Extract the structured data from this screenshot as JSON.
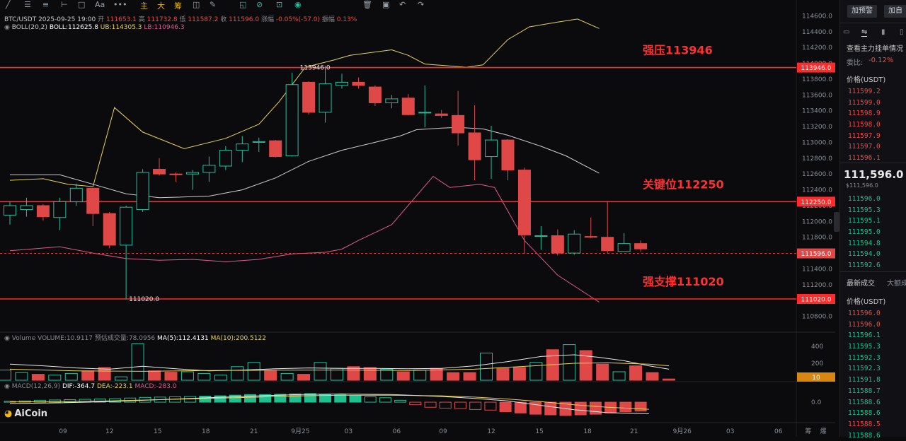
{
  "toolbar": {
    "icons": [
      "trend-line",
      "horizontal-lines",
      "parallel-lines",
      "ray",
      "rectangle",
      "text",
      "dots",
      "zhu",
      "da",
      "chou",
      "indicator",
      "pen",
      "ruler",
      "magnet",
      "lock",
      "eye",
      "trash",
      "undo",
      "redo"
    ],
    "labels": {
      "zhu": "主",
      "da": "大",
      "chou": "筹",
      "text": "Aa"
    }
  },
  "header": {
    "symbol": "BTC/USDT",
    "time": "2025-09-25 19:00",
    "open_label": "开",
    "open": "111653.1",
    "high_label": "高",
    "high": "111732.8",
    "low_label": "低",
    "low": "111587.2",
    "close_label": "收",
    "close": "111596.0",
    "change_label": "涨幅",
    "change": "-0.05%(-57.0)",
    "amp_label": "振幅",
    "amp": "0.13%"
  },
  "boll": {
    "name": "BOLL(20,2)",
    "mid": "BOLL:112625.8",
    "ub": "UB:114305.3",
    "lb": "LB:110946.3"
  },
  "volume_info": {
    "name": "Volume",
    "volume": "VOLUME:10.9117",
    "est": "预估成交量:78.0956",
    "ma5": "MA(5):112.4131",
    "ma10": "MA(10):200.5122"
  },
  "macd_info": {
    "name": "MACD(12,26,9)",
    "dif": "DIF:-364.7",
    "dea": "DEA:-223.1",
    "macd": "MACD:-283.0"
  },
  "logo": "AiCoin",
  "colors": {
    "up": "#23c0a0",
    "down": "#e04848",
    "line": "#ff2a2a",
    "boll_up": "#e8d35a",
    "boll_mid": "#cfcfcf",
    "boll_low": "#e05a8c"
  },
  "chart_data": {
    "type": "candlestick",
    "ylim": [
      110600,
      114800
    ],
    "price_ticks": [
      "114600.0",
      "114400.0",
      "114200.0",
      "114000.0",
      "113800.0",
      "113600.0",
      "113400.0",
      "113200.0",
      "113000.0",
      "112800.0",
      "112600.0",
      "112400.0",
      "112200.0",
      "112000.0",
      "111800.0",
      "111600.0",
      "111400.0",
      "111200.0",
      "111000.0",
      "110800.0"
    ],
    "price_tick_values": [
      114600,
      114400,
      114200,
      114000,
      113800,
      113600,
      113400,
      113200,
      113000,
      112800,
      112600,
      112400,
      112200,
      112000,
      111800,
      111600,
      111400,
      111200,
      111000,
      110800
    ],
    "x_ticks": [
      {
        "label": "09",
        "i": 3.2
      },
      {
        "label": "12",
        "i": 6
      },
      {
        "label": "15",
        "i": 8.9
      },
      {
        "label": "18",
        "i": 11.8
      },
      {
        "label": "21",
        "i": 14.7
      },
      {
        "label": "9月25",
        "i": 17.5
      },
      {
        "label": "03",
        "i": 20.4
      },
      {
        "label": "06",
        "i": 23.3
      },
      {
        "label": "09",
        "i": 26.1
      },
      {
        "label": "12",
        "i": 29
      },
      {
        "label": "15",
        "i": 31.9
      },
      {
        "label": "18",
        "i": 34.8
      },
      {
        "label": "21",
        "i": 37.6
      },
      {
        "label": "9月26",
        "i": 40.5
      },
      {
        "label": "03",
        "i": 43.4
      },
      {
        "label": "06",
        "i": 46.3
      },
      {
        "label": "筹",
        "i": 48.1
      },
      {
        "label": "爆",
        "i": 49
      }
    ],
    "candles": [
      [
        112080,
        112250,
        111960,
        112200
      ],
      [
        112150,
        112300,
        112060,
        112200
      ],
      [
        112200,
        112220,
        112010,
        112060
      ],
      [
        112050,
        112300,
        111890,
        112250
      ],
      [
        112250,
        112480,
        112200,
        112420
      ],
      [
        112420,
        112420,
        111940,
        112100
      ],
      [
        112100,
        112120,
        111660,
        111700
      ],
      [
        111700,
        112200,
        111020,
        112180
      ],
      [
        112150,
        112660,
        112120,
        112620
      ],
      [
        112660,
        112800,
        112580,
        112600
      ],
      [
        112600,
        112620,
        112500,
        112590
      ],
      [
        112600,
        112650,
        112400,
        112620
      ],
      [
        112620,
        112820,
        112500,
        112710
      ],
      [
        112700,
        112950,
        112650,
        112900
      ],
      [
        112900,
        113080,
        112750,
        112980
      ],
      [
        113000,
        113060,
        112880,
        113010
      ],
      [
        113020,
        113030,
        112810,
        112820
      ],
      [
        112830,
        113880,
        112820,
        113730
      ],
      [
        113760,
        113770,
        113350,
        113380
      ],
      [
        113380,
        113970,
        113250,
        113740
      ],
      [
        113720,
        113870,
        113680,
        113760
      ],
      [
        113760,
        113820,
        113680,
        113720
      ],
      [
        113700,
        113720,
        113460,
        113500
      ],
      [
        113500,
        113600,
        113430,
        113550
      ],
      [
        113560,
        113610,
        113340,
        113350
      ],
      [
        113380,
        113720,
        113190,
        113380
      ],
      [
        113360,
        113410,
        113310,
        113340
      ],
      [
        113340,
        113650,
        112960,
        113120
      ],
      [
        113120,
        113470,
        112520,
        112780
      ],
      [
        112820,
        113210,
        112540,
        113030
      ],
      [
        113030,
        113040,
        112520,
        112650
      ],
      [
        112650,
        112680,
        111590,
        111830
      ],
      [
        111820,
        111940,
        111640,
        111820
      ],
      [
        111820,
        111900,
        111570,
        111600
      ],
      [
        111600,
        111890,
        111580,
        111840
      ],
      [
        111810,
        112050,
        111790,
        111800
      ],
      [
        111800,
        112250,
        111600,
        111630
      ],
      [
        111620,
        111850,
        111620,
        111720
      ],
      [
        111720,
        111760,
        111620,
        111653
      ]
    ],
    "boll_upper": [
      [
        0,
        112520
      ],
      [
        2,
        112540
      ],
      [
        3.5,
        112470
      ],
      [
        5,
        112440
      ],
      [
        6.3,
        113440
      ],
      [
        8,
        113130
      ],
      [
        10.5,
        112920
      ],
      [
        13,
        113050
      ],
      [
        15,
        113230
      ],
      [
        16.2,
        113510
      ],
      [
        17.8,
        113950
      ],
      [
        19.5,
        114040
      ],
      [
        20.5,
        114100
      ],
      [
        23,
        114170
      ],
      [
        24,
        114100
      ],
      [
        25,
        113990
      ],
      [
        27.5,
        113950
      ],
      [
        28.5,
        113980
      ],
      [
        30,
        114300
      ],
      [
        31.3,
        114460
      ],
      [
        33,
        114520
      ],
      [
        34.2,
        114560
      ],
      [
        35.5,
        114440
      ]
    ],
    "boll_mid": [
      [
        0,
        112590
      ],
      [
        3,
        112590
      ],
      [
        5,
        112470
      ],
      [
        7,
        112350
      ],
      [
        9,
        112300
      ],
      [
        12,
        112320
      ],
      [
        14,
        112400
      ],
      [
        16,
        112550
      ],
      [
        18,
        112760
      ],
      [
        20,
        112900
      ],
      [
        22,
        113000
      ],
      [
        23.5,
        113080
      ],
      [
        24.5,
        113160
      ],
      [
        26,
        113180
      ],
      [
        27,
        113190
      ],
      [
        28.5,
        113170
      ],
      [
        30,
        113090
      ],
      [
        32,
        112950
      ],
      [
        33.5,
        112830
      ],
      [
        35.5,
        112610
      ]
    ],
    "boll_lower": [
      [
        0,
        111630
      ],
      [
        3,
        111680
      ],
      [
        5,
        111600
      ],
      [
        7,
        111530
      ],
      [
        9,
        111510
      ],
      [
        11,
        111520
      ],
      [
        13,
        111490
      ],
      [
        15,
        111520
      ],
      [
        17,
        111590
      ],
      [
        19,
        111610
      ],
      [
        20,
        111650
      ],
      [
        21,
        111760
      ],
      [
        23,
        111960
      ],
      [
        25.5,
        112570
      ],
      [
        26.5,
        112430
      ],
      [
        28.3,
        112470
      ],
      [
        29.2,
        112430
      ],
      [
        31,
        111760
      ],
      [
        33,
        111320
      ],
      [
        35.5,
        110980
      ]
    ],
    "h_lines": [
      {
        "value": 113946,
        "label": "113946.0",
        "annotation": "强压113946"
      },
      {
        "value": 112250,
        "label": "112250.0",
        "annotation": "关键位112250"
      },
      {
        "value": 111020,
        "label": "111020.0",
        "annotation": "强支撑111020"
      }
    ],
    "current_price": {
      "value": 111596,
      "label": "111596.0"
    },
    "markers": [
      {
        "i": 17.3,
        "value": 113946,
        "label": "113946.0"
      },
      {
        "i": 7,
        "value": 111020,
        "label": "111020.0"
      }
    ],
    "volume": {
      "ylim": [
        0,
        450
      ],
      "ticks": [
        "400",
        "200"
      ],
      "tick_values": [
        400,
        200
      ],
      "current_tag": "10",
      "bars": [
        120,
        90,
        70,
        60,
        80,
        110,
        150,
        40,
        430,
        110,
        95,
        100,
        80,
        60,
        160,
        210,
        110,
        80,
        70,
        210,
        140,
        160,
        150,
        130,
        100,
        120,
        140,
        90,
        90,
        320,
        140,
        150,
        210,
        360,
        420,
        350,
        190,
        100,
        170,
        90,
        15
      ],
      "ma5": [
        [
          0,
          190
        ],
        [
          2,
          170
        ],
        [
          4,
          145
        ],
        [
          6,
          130
        ],
        [
          8,
          165
        ],
        [
          10,
          135
        ],
        [
          12,
          110
        ],
        [
          14,
          120
        ],
        [
          16,
          135
        ],
        [
          18,
          145
        ],
        [
          20,
          140
        ],
        [
          22,
          140
        ],
        [
          24,
          135
        ],
        [
          26,
          140
        ],
        [
          28,
          170
        ],
        [
          30,
          220
        ],
        [
          32,
          280
        ],
        [
          34,
          300
        ],
        [
          35.5,
          270
        ],
        [
          37,
          230
        ],
        [
          38.5,
          170
        ],
        [
          39.7,
          130
        ]
      ],
      "ma10": [
        [
          0,
          130
        ],
        [
          4,
          110
        ],
        [
          8,
          105
        ],
        [
          12,
          115
        ],
        [
          16,
          118
        ],
        [
          20,
          120
        ],
        [
          24,
          115
        ],
        [
          28,
          130
        ],
        [
          32,
          175
        ],
        [
          34,
          200
        ],
        [
          36,
          205
        ],
        [
          38.5,
          190
        ],
        [
          39.7,
          170
        ]
      ]
    },
    "macd": {
      "ylim": [
        -600,
        380
      ],
      "zero_label": "0.0",
      "hist": [
        30,
        40,
        60,
        70,
        80,
        90,
        100,
        110,
        130,
        150,
        160,
        170,
        180,
        190,
        200,
        220,
        240,
        240,
        250,
        260,
        270,
        250,
        230,
        200,
        170,
        140,
        60,
        -80,
        -160,
        -190,
        -200,
        -230,
        -250,
        -300,
        -340,
        -380,
        -400,
        -420,
        -400,
        -380,
        -340,
        -300,
        -283
      ],
      "dif": [
        [
          0,
          -40
        ],
        [
          3,
          -20
        ],
        [
          6,
          20
        ],
        [
          9,
          80
        ],
        [
          12,
          140
        ],
        [
          15,
          200
        ],
        [
          17.5,
          240
        ],
        [
          20,
          260
        ],
        [
          23,
          240
        ],
        [
          26,
          180
        ],
        [
          28,
          120
        ],
        [
          30,
          40
        ],
        [
          32,
          -100
        ],
        [
          34,
          -240
        ],
        [
          36,
          -330
        ],
        [
          38.5,
          -364
        ]
      ],
      "dea": [
        [
          0,
          10
        ],
        [
          3,
          20
        ],
        [
          6,
          40
        ],
        [
          9,
          80
        ],
        [
          12,
          120
        ],
        [
          15,
          160
        ],
        [
          17.5,
          200
        ],
        [
          20,
          220
        ],
        [
          23,
          220
        ],
        [
          26,
          200
        ],
        [
          28,
          160
        ],
        [
          30,
          100
        ],
        [
          32,
          20
        ],
        [
          34,
          -80
        ],
        [
          36,
          -160
        ],
        [
          38.5,
          -223
        ]
      ]
    }
  },
  "panel": {
    "btn_alert": "加预警",
    "btn_add": "加自",
    "tabs": [
      "icon-a",
      "icon-b",
      "icon-c",
      "icon-d"
    ],
    "order_book_title": "查看主力挂单情况",
    "ratio_label": "委比:",
    "ratio_value": "-0.12%",
    "price_header": "价格(USDT)",
    "asks": [
      "111599.2",
      "111599.0",
      "111598.9",
      "111598.0",
      "111597.9",
      "111597.0",
      "111596.1"
    ],
    "last_price": "111,596.0",
    "last_price_usd": "$111,596.0",
    "bids": [
      "111596.0",
      "111595.3",
      "111595.1",
      "111595.0",
      "111594.8",
      "111594.0",
      "111592.6"
    ],
    "trades_title": "最新成交",
    "trades_title2": "大额成",
    "trades_price_header": "价格(USDT)",
    "trades": [
      {
        "p": "111596.0",
        "side": "down"
      },
      {
        "p": "111596.0",
        "side": "down"
      },
      {
        "p": "111596.1",
        "side": "up"
      },
      {
        "p": "111595.3",
        "side": "up"
      },
      {
        "p": "111592.3",
        "side": "up"
      },
      {
        "p": "111592.3",
        "side": "up"
      },
      {
        "p": "111591.8",
        "side": "up"
      },
      {
        "p": "111588.7",
        "side": "up"
      },
      {
        "p": "111588.6",
        "side": "up"
      },
      {
        "p": "111588.6",
        "side": "up"
      },
      {
        "p": "111588.5",
        "side": "down"
      },
      {
        "p": "111588.6",
        "side": "up"
      }
    ]
  }
}
